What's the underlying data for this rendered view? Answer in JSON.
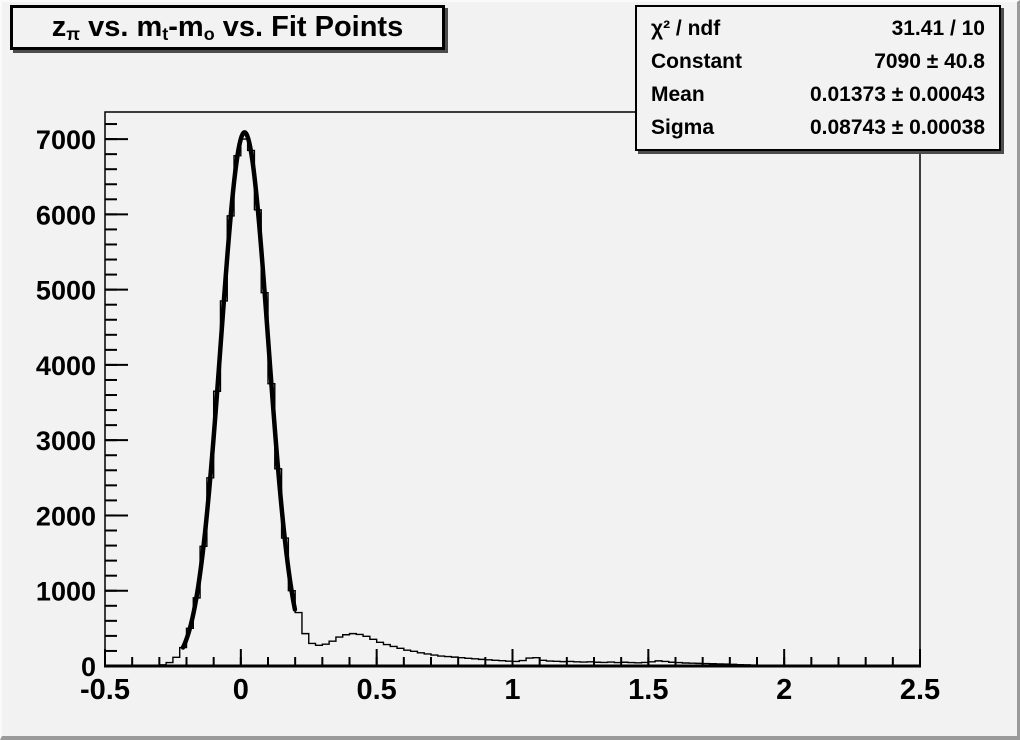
{
  "colors": {
    "canvas_bg": "#f2f2f2",
    "line": "#000000",
    "box_shadow": "#4d4d4d",
    "bevel": "#9a9a9a"
  },
  "title": {
    "full_text": "z_π vs. m_t-m_o vs. Fit Points",
    "segments": [
      {
        "text": "z"
      },
      {
        "text": "π"
      },
      {
        "text": " vs. m"
      },
      {
        "text": "t"
      },
      {
        "text": "-m"
      },
      {
        "text": "o"
      },
      {
        "text": " vs. Fit Points"
      }
    ]
  },
  "stats": {
    "rows": [
      {
        "label": "χ² / ndf",
        "value": "31.41 / 10"
      },
      {
        "label": "Constant",
        "value": "7090 ± 40.8"
      },
      {
        "label": "Mean",
        "value": "0.01373 ± 0.00043"
      },
      {
        "label": "Sigma",
        "value": "0.08743 ± 0.00038"
      }
    ]
  },
  "chart_data": {
    "type": "bar",
    "style": "step-histogram",
    "title": "z_π vs. m_t-m_o vs. Fit Points",
    "xlabel": "",
    "ylabel": "",
    "xlim": [
      -0.5,
      2.5
    ],
    "ylim": [
      0,
      7360
    ],
    "grid": false,
    "legend": false,
    "bin_start": -0.5,
    "bin_width": 0.025,
    "bins": [
      0,
      0,
      0,
      0,
      0,
      0,
      0,
      4,
      15,
      45,
      115,
      245,
      500,
      905,
      1590,
      2500,
      3650,
      4850,
      5980,
      6780,
      7000,
      6850,
      6060,
      4960,
      3750,
      2620,
      1700,
      1000,
      710,
      430,
      300,
      275,
      290,
      330,
      385,
      415,
      430,
      420,
      395,
      355,
      315,
      285,
      260,
      235,
      210,
      195,
      175,
      160,
      145,
      132,
      125,
      118,
      110,
      102,
      95,
      88,
      82,
      76,
      70,
      64,
      60,
      72,
      105,
      110,
      76,
      66,
      62,
      58,
      60,
      55,
      52,
      55,
      50,
      48,
      52,
      46,
      50,
      45,
      42,
      48,
      55,
      68,
      60,
      50,
      45,
      40,
      38,
      35,
      33,
      30,
      28,
      25,
      22,
      18,
      15,
      12,
      9,
      6,
      4,
      2,
      0,
      0,
      0,
      0,
      0,
      0,
      0,
      0,
      0,
      0,
      0,
      0,
      0,
      0,
      0,
      0,
      0,
      0,
      0,
      0
    ],
    "fit": {
      "type": "gaussian",
      "constant": 7090,
      "mean": 0.01373,
      "sigma": 0.08743,
      "chi2": 31.41,
      "ndf": 10,
      "draw_range": [
        -0.213,
        0.2
      ]
    },
    "x_ticks": [
      {
        "v": -0.5,
        "label": "-0.5"
      },
      {
        "v": 0,
        "label": "0"
      },
      {
        "v": 0.5,
        "label": "0.5"
      },
      {
        "v": 1,
        "label": "1"
      },
      {
        "v": 1.5,
        "label": "1.5"
      },
      {
        "v": 2,
        "label": "2"
      },
      {
        "v": 2.5,
        "label": "2.5"
      }
    ],
    "y_ticks": [
      {
        "v": 0,
        "label": "0"
      },
      {
        "v": 1000,
        "label": "1000"
      },
      {
        "v": 2000,
        "label": "2000"
      },
      {
        "v": 3000,
        "label": "3000"
      },
      {
        "v": 4000,
        "label": "4000"
      },
      {
        "v": 5000,
        "label": "5000"
      },
      {
        "v": 6000,
        "label": "6000"
      },
      {
        "v": 7000,
        "label": "7000"
      }
    ],
    "x_minor_step": 0.1,
    "y_minor_step": 200
  }
}
